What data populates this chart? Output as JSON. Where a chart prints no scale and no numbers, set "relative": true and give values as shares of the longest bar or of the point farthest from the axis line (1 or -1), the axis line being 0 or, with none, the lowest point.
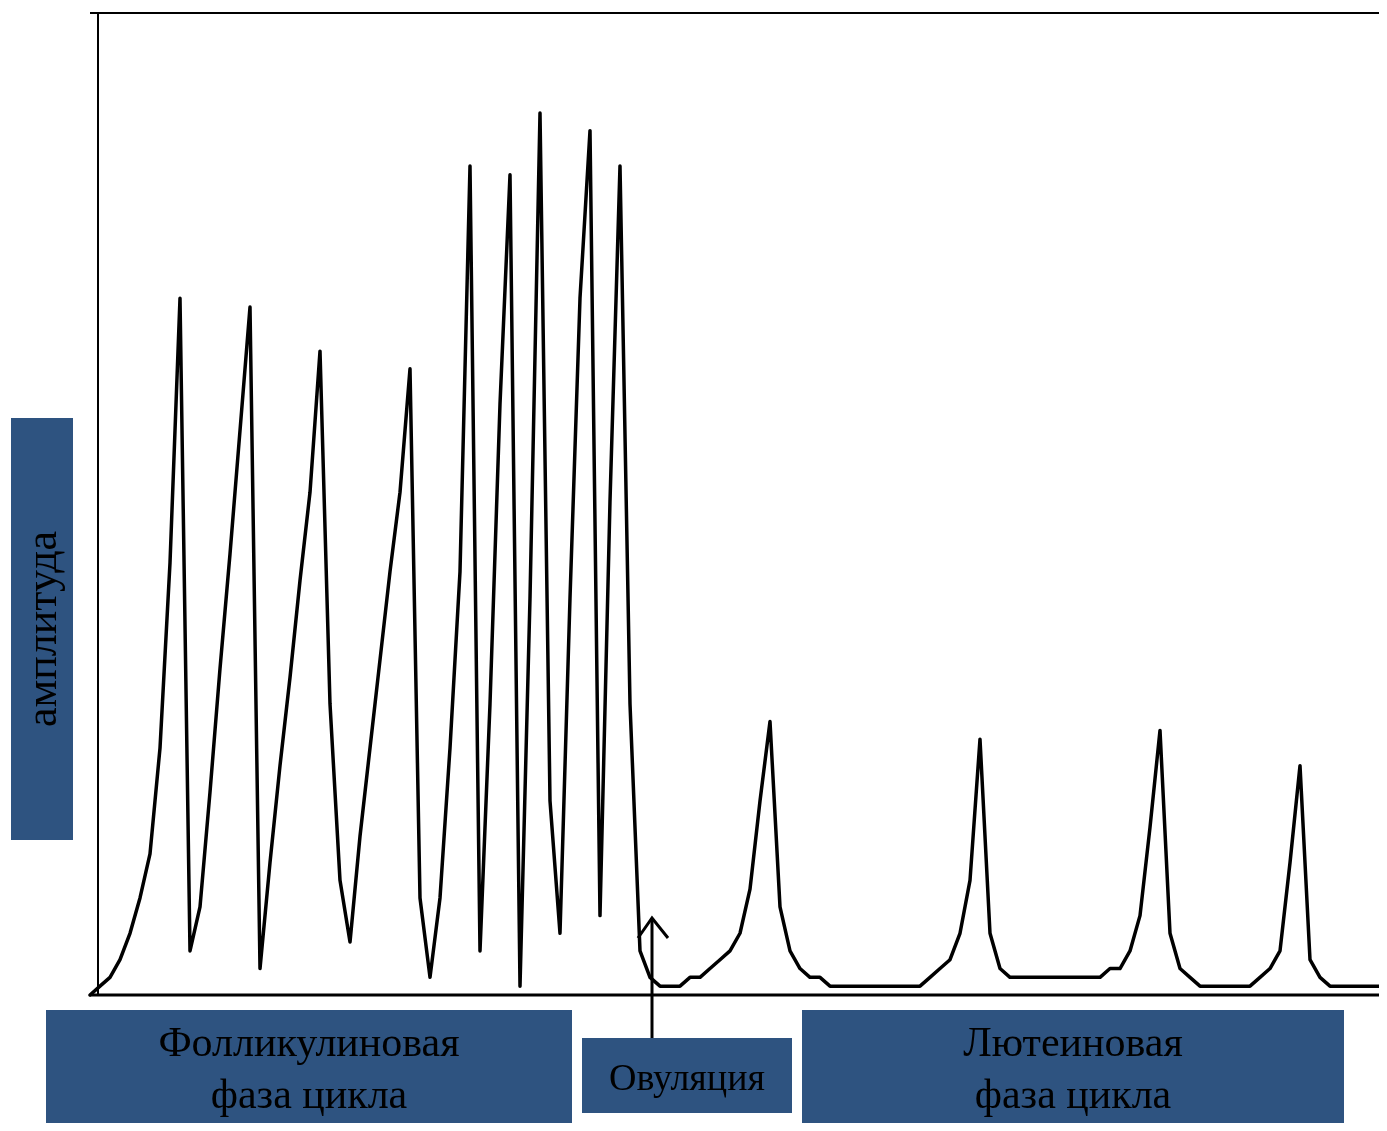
{
  "chart_data": {
    "type": "line",
    "relative": true,
    "ylabel": "амплитуда",
    "color": "#000000",
    "annotations": [
      "Фолликулиновая фаза цикла",
      "Овуляция",
      "Лютеиновая фаза цикла"
    ],
    "categories": [
      null,
      null,
      null,
      null,
      null,
      null,
      null,
      null,
      null,
      null,
      null,
      null,
      null,
      null,
      null,
      null,
      null,
      null,
      null,
      null,
      null,
      null,
      null,
      null,
      null,
      null,
      null,
      null,
      null,
      null,
      null,
      null,
      null,
      null,
      null,
      null,
      null,
      null,
      null,
      null,
      null,
      null,
      null,
      null,
      null,
      null,
      null,
      null,
      null,
      null,
      null,
      null,
      null,
      null,
      null,
      null,
      null,
      null,
      null,
      null,
      null,
      null,
      null,
      null,
      null,
      null,
      null,
      null,
      null,
      null,
      null,
      null,
      null,
      null,
      null,
      null,
      null,
      null,
      null,
      null,
      null,
      null,
      null,
      null,
      null,
      null,
      null,
      null,
      null,
      null,
      null,
      null,
      null,
      null,
      null,
      null,
      null,
      null,
      null,
      null,
      null,
      null,
      null,
      null,
      null,
      null,
      null,
      null,
      null,
      null,
      null,
      null,
      null,
      null,
      null,
      null,
      null,
      null,
      null,
      null,
      null,
      null,
      null,
      null,
      null,
      null,
      null,
      null,
      null,
      null
    ],
    "values": [
      0,
      0.01,
      0.02,
      0.04,
      0.07,
      0.11,
      0.16,
      0.28,
      0.49,
      0.79,
      0.05,
      0.1,
      0.23,
      0.37,
      0.5,
      0.64,
      0.78,
      0.03,
      0.15,
      0.26,
      0.36,
      0.47,
      0.57,
      0.73,
      0.33,
      0.13,
      0.06,
      0.18,
      0.28,
      0.38,
      0.48,
      0.57,
      0.71,
      0.11,
      0.02,
      0.11,
      0.28,
      0.48,
      0.94,
      0.05,
      0.33,
      0.67,
      0.93,
      0.01,
      0.45,
      1,
      0.22,
      0.07,
      0.45,
      0.79,
      0.98,
      0.09,
      0.56,
      0.94,
      0.33,
      0.05,
      0.02,
      0.01,
      0.01,
      0.01,
      0.02,
      0.02,
      0.03,
      0.04,
      0.05,
      0.07,
      0.12,
      0.22,
      0.31,
      0.1,
      0.05,
      0.03,
      0.02,
      0.02,
      0.01,
      0.01,
      0.01,
      0.01,
      0.01,
      0.01,
      0.01,
      0.01,
      0.01,
      0.01,
      0.02,
      0.03,
      0.04,
      0.07,
      0.13,
      0.29,
      0.07,
      0.03,
      0.02,
      0.02,
      0.02,
      0.02,
      0.02,
      0.02,
      0.02,
      0.02,
      0.02,
      0.02,
      0.03,
      0.03,
      0.05,
      0.09,
      0.19,
      0.3,
      0.07,
      0.03,
      0.02,
      0.01,
      0.01,
      0.01,
      0.01,
      0.01,
      0.01,
      0.02,
      0.03,
      0.05,
      0.15,
      0.26,
      0.04,
      0.02,
      0.01,
      0.01,
      0.01,
      0.01,
      0.01,
      0.01
    ]
  }
}
